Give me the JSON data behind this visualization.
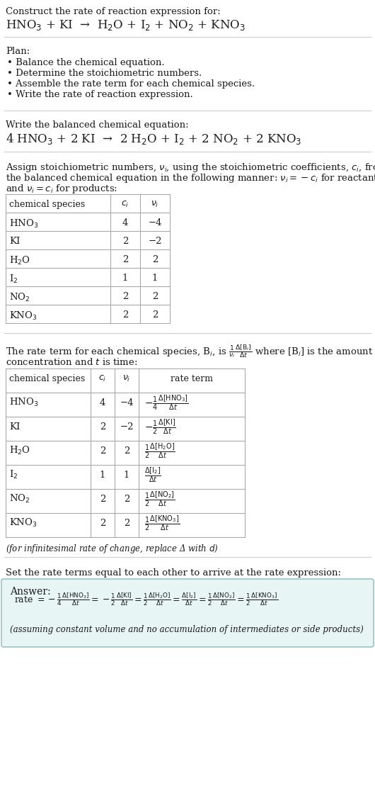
{
  "title_text": "Construct the rate of reaction expression for:",
  "reaction_unbalanced": "HNO$_3$ + KI  →  H$_2$O + I$_2$ + NO$_2$ + KNO$_3$",
  "plan_header": "Plan:",
  "plan_items": [
    "• Balance the chemical equation.",
    "• Determine the stoichiometric numbers.",
    "• Assemble the rate term for each chemical species.",
    "• Write the rate of reaction expression."
  ],
  "balanced_header": "Write the balanced chemical equation:",
  "reaction_balanced": "4 HNO$_3$ + 2 KI  →  2 H$_2$O + I$_2$ + 2 NO$_2$ + 2 KNO$_3$",
  "stoich_header_line1": "Assign stoichiometric numbers, $\\nu_i$, using the stoichiometric coefficients, $c_i$, from",
  "stoich_header_line2": "the balanced chemical equation in the following manner: $\\nu_i = -c_i$ for reactants",
  "stoich_header_line3": "and $\\nu_i = c_i$ for products:",
  "table1_col_header": [
    "chemical species",
    "$c_i$",
    "$\\nu_i$"
  ],
  "table1_data": [
    [
      "HNO$_3$",
      "4",
      "−4"
    ],
    [
      "KI",
      "2",
      "−2"
    ],
    [
      "H$_2$O",
      "2",
      "2"
    ],
    [
      "I$_2$",
      "1",
      "1"
    ],
    [
      "NO$_2$",
      "2",
      "2"
    ],
    [
      "KNO$_3$",
      "2",
      "2"
    ]
  ],
  "rate_header_line1": "The rate term for each chemical species, B$_i$, is $\\frac{1}{\\nu_i}\\frac{\\Delta[\\mathrm{B}_i]}{\\Delta t}$ where [B$_i$] is the amount",
  "rate_header_line2": "concentration and $t$ is time:",
  "table2_col_header": [
    "chemical species",
    "$c_i$",
    "$\\nu_i$",
    "rate term"
  ],
  "table2_data": [
    [
      "HNO$_3$",
      "4",
      "−4",
      "$-\\frac{1}{4}\\frac{\\Delta[\\mathrm{HNO_3}]}{\\Delta t}$"
    ],
    [
      "KI",
      "2",
      "−2",
      "$-\\frac{1}{2}\\frac{\\Delta[\\mathrm{KI}]}{\\Delta t}$"
    ],
    [
      "H$_2$O",
      "2",
      "2",
      "$\\frac{1}{2}\\frac{\\Delta[\\mathrm{H_2O}]}{\\Delta t}$"
    ],
    [
      "I$_2$",
      "1",
      "1",
      "$\\frac{\\Delta[\\mathrm{I_2}]}{\\Delta t}$"
    ],
    [
      "NO$_2$",
      "2",
      "2",
      "$\\frac{1}{2}\\frac{\\Delta[\\mathrm{NO_2}]}{\\Delta t}$"
    ],
    [
      "KNO$_3$",
      "2",
      "2",
      "$\\frac{1}{2}\\frac{\\Delta[\\mathrm{KNO_3}]}{\\Delta t}$"
    ]
  ],
  "infinitesimal_note": "(for infinitesimal rate of change, replace Δ with $d$)",
  "set_equal_header": "Set the rate terms equal to each other to arrive at the rate expression:",
  "answer_label": "Answer:",
  "answer_rate": "rate $= -\\frac{1}{4}\\frac{\\Delta[\\mathrm{HNO_3}]}{\\Delta t} = -\\frac{1}{2}\\frac{\\Delta[\\mathrm{KI}]}{\\Delta t} = \\frac{1}{2}\\frac{\\Delta[\\mathrm{H_2O}]}{\\Delta t} = \\frac{\\Delta[\\mathrm{I_2}]}{\\Delta t} = \\frac{1}{2}\\frac{\\Delta[\\mathrm{NO_2}]}{\\Delta t} = \\frac{1}{2}\\frac{\\Delta[\\mathrm{KNO_3}]}{\\Delta t}$",
  "answer_note": "(assuming constant volume and no accumulation of intermediates or side products)",
  "bg_color": "#ffffff",
  "text_color": "#1a1a1a",
  "sep_color": "#cccccc",
  "table_line_color": "#aaaaaa",
  "answer_bg_color": "#e8f5f5",
  "answer_border_color": "#88bbbb"
}
